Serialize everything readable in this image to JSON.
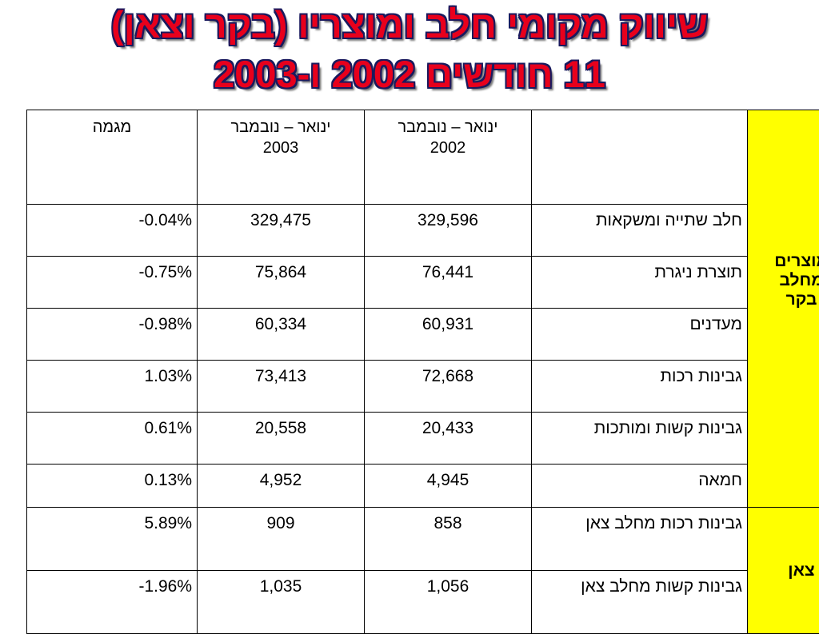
{
  "header": {
    "title_lines": [
      "שיווק מקומי חלב ומוצריו (בקר וצאן)",
      "11 חודשים 2002 ו-2003"
    ]
  },
  "table": {
    "columns": [
      "ינואר – נובמבר 2002",
      "ינואר – נובמבר 2003",
      "מגמה"
    ],
    "groups": [
      {
        "label": "מוצרים מחלב בקר",
        "rows": [
          [
            "חלב שתייה ומשקאות",
            "329,596",
            "329,475",
            "-0.04%"
          ],
          [
            "תוצרת ניגרת",
            "76,441",
            "75,864",
            "-0.75%"
          ],
          [
            "מעדנים",
            "60,931",
            "60,334",
            "-0.98%"
          ],
          [
            "גבינות רכות",
            "72,668",
            "73,413",
            "1.03%"
          ],
          [
            "גבינות קשות ומותכות",
            "20,433",
            "20,558",
            "0.61%"
          ],
          [
            "חמאה",
            "4,945",
            "4,952",
            "0.13%"
          ]
        ]
      },
      {
        "label": "צאן",
        "rows": [
          [
            "גבינות רכות מחלב צאן",
            "858",
            "909",
            "5.89%"
          ],
          [
            "גבינות קשות מחלב צאן",
            "1,056",
            "1,035",
            "-1.96%"
          ]
        ]
      }
    ]
  }
}
